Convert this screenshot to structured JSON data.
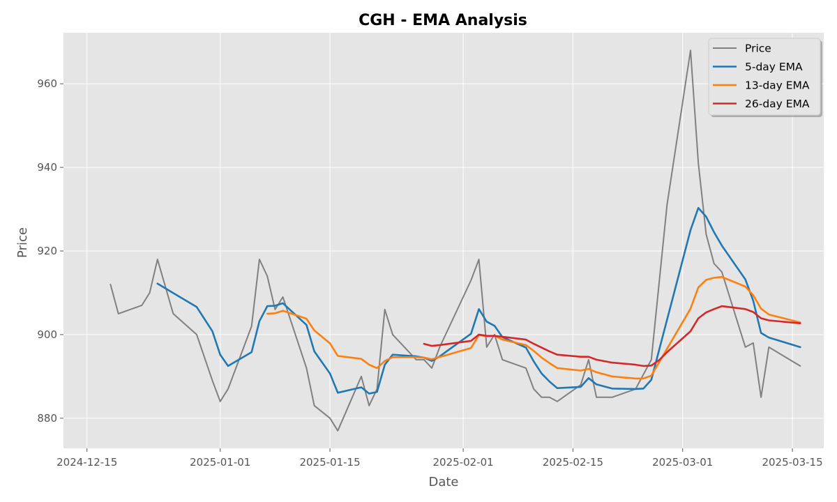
{
  "chart_data": {
    "type": "line",
    "title": "CGH - EMA Analysis",
    "xlabel": "Date",
    "ylabel": "Price",
    "x_range": [
      "2024-12-12",
      "2025-03-19"
    ],
    "ylim": [
      872.8,
      972.2
    ],
    "x_ticks": [
      "2024-12-15",
      "2025-01-01",
      "2025-01-15",
      "2025-02-01",
      "2025-02-15",
      "2025-03-01",
      "2025-03-15"
    ],
    "y_ticks": [
      880,
      900,
      920,
      940,
      960
    ],
    "grid": true,
    "legend_position": "top-right",
    "series": [
      {
        "name": "Price",
        "color": "#808080",
        "points": [
          [
            "2024-12-18",
            912
          ],
          [
            "2024-12-19",
            905
          ],
          [
            "2024-12-22",
            907
          ],
          [
            "2024-12-23",
            910
          ],
          [
            "2024-12-24",
            918
          ],
          [
            "2024-12-26",
            905
          ],
          [
            "2024-12-29",
            900
          ],
          [
            "2024-12-31",
            889
          ],
          [
            "2025-01-01",
            884
          ],
          [
            "2025-01-02",
            887
          ],
          [
            "2025-01-05",
            902
          ],
          [
            "2025-01-06",
            918
          ],
          [
            "2025-01-07",
            914
          ],
          [
            "2025-01-08",
            906
          ],
          [
            "2025-01-09",
            909
          ],
          [
            "2025-01-12",
            892
          ],
          [
            "2025-01-13",
            883
          ],
          [
            "2025-01-15",
            880
          ],
          [
            "2025-01-16",
            877
          ],
          [
            "2025-01-19",
            890
          ],
          [
            "2025-01-20",
            883
          ],
          [
            "2025-01-21",
            887
          ],
          [
            "2025-01-22",
            906
          ],
          [
            "2025-01-23",
            900
          ],
          [
            "2025-01-26",
            894
          ],
          [
            "2025-01-27",
            894
          ],
          [
            "2025-01-28",
            892
          ],
          [
            "2025-01-29",
            897
          ],
          [
            "2025-02-02",
            913
          ],
          [
            "2025-02-03",
            918
          ],
          [
            "2025-02-04",
            897
          ],
          [
            "2025-02-05",
            900
          ],
          [
            "2025-02-06",
            894
          ],
          [
            "2025-02-09",
            892
          ],
          [
            "2025-02-10",
            887
          ],
          [
            "2025-02-11",
            885
          ],
          [
            "2025-02-12",
            885
          ],
          [
            "2025-02-13",
            884
          ],
          [
            "2025-02-16",
            888
          ],
          [
            "2025-02-17",
            894
          ],
          [
            "2025-02-18",
            885
          ],
          [
            "2025-02-20",
            885
          ],
          [
            "2025-02-23",
            887
          ],
          [
            "2025-02-25",
            894
          ],
          [
            "2025-02-27",
            931
          ],
          [
            "2025-03-02",
            968
          ],
          [
            "2025-03-03",
            941
          ],
          [
            "2025-03-04",
            924
          ],
          [
            "2025-03-05",
            917
          ],
          [
            "2025-03-06",
            915
          ],
          [
            "2025-03-09",
            897
          ],
          [
            "2025-03-10",
            898
          ],
          [
            "2025-03-11",
            885
          ],
          [
            "2025-03-12",
            897
          ],
          [
            "2025-03-16",
            892.5
          ]
        ]
      },
      {
        "name": "5-day EMA",
        "color": "#1f77b4",
        "points": [
          [
            "2024-12-24",
            912.2
          ],
          [
            "2024-12-29",
            906.6
          ],
          [
            "2024-12-31",
            900.8
          ],
          [
            "2025-01-01",
            895.2
          ],
          [
            "2025-01-02",
            892.5
          ],
          [
            "2025-01-05",
            895.8
          ],
          [
            "2025-01-06",
            903.2
          ],
          [
            "2025-01-07",
            906.8
          ],
          [
            "2025-01-08",
            906.9
          ],
          [
            "2025-01-09",
            907.5
          ],
          [
            "2025-01-12",
            902.3
          ],
          [
            "2025-01-13",
            896.0
          ],
          [
            "2025-01-15",
            890.7
          ],
          [
            "2025-01-16",
            886.1
          ],
          [
            "2025-01-19",
            887.4
          ],
          [
            "2025-01-20",
            885.9
          ],
          [
            "2025-01-21",
            886.3
          ],
          [
            "2025-01-22",
            892.8
          ],
          [
            "2025-01-23",
            895.2
          ],
          [
            "2025-01-26",
            894.8
          ],
          [
            "2025-01-27",
            894.5
          ],
          [
            "2025-01-28",
            893.7
          ],
          [
            "2025-01-29",
            894.8
          ],
          [
            "2025-02-02",
            900.2
          ],
          [
            "2025-02-03",
            906.1
          ],
          [
            "2025-02-04",
            903.1
          ],
          [
            "2025-02-05",
            902.1
          ],
          [
            "2025-02-06",
            899.4
          ],
          [
            "2025-02-09",
            896.9
          ],
          [
            "2025-02-10",
            893.6
          ],
          [
            "2025-02-11",
            890.7
          ],
          [
            "2025-02-12",
            888.8
          ],
          [
            "2025-02-13",
            887.2
          ],
          [
            "2025-02-16",
            887.5
          ],
          [
            "2025-02-17",
            889.6
          ],
          [
            "2025-02-18",
            888.1
          ],
          [
            "2025-02-20",
            887.1
          ],
          [
            "2025-02-23",
            887.0
          ],
          [
            "2025-02-24",
            887.1
          ],
          [
            "2025-02-25",
            889.2
          ],
          [
            "2025-03-02",
            925.0
          ],
          [
            "2025-03-03",
            930.3
          ],
          [
            "2025-03-04",
            928.2
          ],
          [
            "2025-03-05",
            924.5
          ],
          [
            "2025-03-06",
            921.3
          ],
          [
            "2025-03-09",
            913.2
          ],
          [
            "2025-03-10",
            908.1
          ],
          [
            "2025-03-11",
            900.4
          ],
          [
            "2025-03-12",
            899.3
          ],
          [
            "2025-03-16",
            897.0
          ]
        ]
      },
      {
        "name": "13-day EMA",
        "color": "#ff7f0e",
        "points": [
          [
            "2025-01-07",
            905.0
          ],
          [
            "2025-01-08",
            905.1
          ],
          [
            "2025-01-09",
            905.7
          ],
          [
            "2025-01-12",
            903.8
          ],
          [
            "2025-01-13",
            901.0
          ],
          [
            "2025-01-15",
            897.9
          ],
          [
            "2025-01-16",
            894.9
          ],
          [
            "2025-01-19",
            894.2
          ],
          [
            "2025-01-20",
            892.8
          ],
          [
            "2025-01-21",
            892.0
          ],
          [
            "2025-01-22",
            893.7
          ],
          [
            "2025-01-23",
            894.6
          ],
          [
            "2025-01-26",
            894.6
          ],
          [
            "2025-01-27",
            894.5
          ],
          [
            "2025-01-28",
            894.1
          ],
          [
            "2025-02-02",
            896.8
          ],
          [
            "2025-02-03",
            899.9
          ],
          [
            "2025-02-04",
            899.6
          ],
          [
            "2025-02-05",
            899.7
          ],
          [
            "2025-02-06",
            898.8
          ],
          [
            "2025-02-09",
            897.5
          ],
          [
            "2025-02-10",
            896.1
          ],
          [
            "2025-02-11",
            894.5
          ],
          [
            "2025-02-12",
            893.2
          ],
          [
            "2025-02-13",
            892.0
          ],
          [
            "2025-02-16",
            891.4
          ],
          [
            "2025-02-17",
            891.8
          ],
          [
            "2025-02-18",
            891.0
          ],
          [
            "2025-02-20",
            890.0
          ],
          [
            "2025-02-23",
            889.5
          ],
          [
            "2025-02-24",
            889.5
          ],
          [
            "2025-02-25",
            890.2
          ],
          [
            "2025-03-02",
            906.2
          ],
          [
            "2025-03-03",
            911.3
          ],
          [
            "2025-03-04",
            913.1
          ],
          [
            "2025-03-05",
            913.6
          ],
          [
            "2025-03-06",
            913.8
          ],
          [
            "2025-03-09",
            911.5
          ],
          [
            "2025-03-10",
            909.4
          ],
          [
            "2025-03-11",
            906.2
          ],
          [
            "2025-03-12",
            904.8
          ],
          [
            "2025-03-16",
            902.9
          ]
        ]
      },
      {
        "name": "26-day EMA",
        "color": "#d62728",
        "points": [
          [
            "2025-01-27",
            897.8
          ],
          [
            "2025-01-28",
            897.3
          ],
          [
            "2025-01-29",
            897.5
          ],
          [
            "2025-02-02",
            898.5
          ],
          [
            "2025-02-03",
            900.0
          ],
          [
            "2025-02-04",
            899.7
          ],
          [
            "2025-02-05",
            899.7
          ],
          [
            "2025-02-09",
            898.8
          ],
          [
            "2025-02-10",
            897.8
          ],
          [
            "2025-02-12",
            896.0
          ],
          [
            "2025-02-13",
            895.2
          ],
          [
            "2025-02-16",
            894.7
          ],
          [
            "2025-02-17",
            894.7
          ],
          [
            "2025-02-18",
            894.0
          ],
          [
            "2025-02-20",
            893.3
          ],
          [
            "2025-02-23",
            892.8
          ],
          [
            "2025-02-24",
            892.5
          ],
          [
            "2025-02-25",
            892.6
          ],
          [
            "2025-02-26",
            893.9
          ],
          [
            "2025-02-27",
            895.8
          ],
          [
            "2025-03-02",
            900.8
          ],
          [
            "2025-03-03",
            903.9
          ],
          [
            "2025-03-04",
            905.3
          ],
          [
            "2025-03-05",
            906.1
          ],
          [
            "2025-03-06",
            906.8
          ],
          [
            "2025-03-09",
            906.1
          ],
          [
            "2025-03-10",
            905.4
          ],
          [
            "2025-03-11",
            903.9
          ],
          [
            "2025-03-12",
            903.4
          ],
          [
            "2025-03-16",
            902.7
          ]
        ]
      }
    ]
  }
}
